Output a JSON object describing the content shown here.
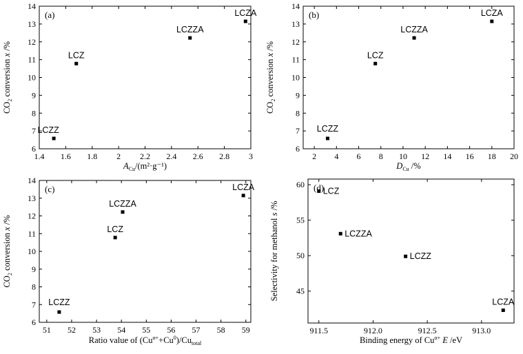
{
  "chart_data": [
    {
      "type": "scatter",
      "panel_label": "(a)",
      "xlabel_parts": [
        "A",
        "Cu",
        "/(m²·g⁻¹)"
      ],
      "ylabel_parts": [
        "CO",
        "2",
        " conversion",
        "x",
        " /%"
      ],
      "xlim": [
        1.4,
        3.0
      ],
      "xticks": [
        1.4,
        1.6,
        1.8,
        2.0,
        2.2,
        2.4,
        2.6,
        2.8,
        3.0
      ],
      "ylim": [
        6,
        14
      ],
      "yticks": [
        6,
        7,
        8,
        9,
        10,
        11,
        12,
        13,
        14
      ],
      "points": [
        {
          "label": "LCZZ",
          "x": 1.51,
          "y": 6.58
        },
        {
          "label": "LCZ",
          "x": 1.68,
          "y": 10.78
        },
        {
          "label": "LCZZA",
          "x": 2.54,
          "y": 12.22
        },
        {
          "label": "LCZA",
          "x": 2.96,
          "y": 13.15
        }
      ]
    },
    {
      "type": "scatter",
      "panel_label": "(b)",
      "xlabel_parts": [
        "D",
        "Cu",
        " /%"
      ],
      "ylabel_parts": [
        "CO",
        "2",
        " conversion",
        "x",
        " /%"
      ],
      "xlim": [
        1,
        20
      ],
      "xticks": [
        2,
        4,
        6,
        8,
        10,
        12,
        14,
        16,
        18,
        20
      ],
      "ylim": [
        6,
        14
      ],
      "yticks": [
        6,
        7,
        8,
        9,
        10,
        11,
        12,
        13,
        14
      ],
      "points": [
        {
          "label": "LCZZ",
          "x": 3.2,
          "y": 6.58
        },
        {
          "label": "LCZ",
          "x": 7.5,
          "y": 10.78
        },
        {
          "label": "LCZZA",
          "x": 11.0,
          "y": 12.22
        },
        {
          "label": "LCZA",
          "x": 18.0,
          "y": 13.15
        }
      ]
    },
    {
      "type": "scatter",
      "panel_label": "(c)",
      "xlabel_parts": [
        "Ratio value of (Cu",
        "α+",
        "+Cu",
        "0",
        ")/Cu",
        "total"
      ],
      "ylabel_parts": [
        "CO",
        "2",
        " conversion",
        "x",
        " /%"
      ],
      "xlim": [
        50.7,
        59.2
      ],
      "xticks": [
        51,
        52,
        53,
        54,
        55,
        56,
        57,
        58,
        59
      ],
      "ylim": [
        6,
        14
      ],
      "yticks": [
        6,
        7,
        8,
        9,
        10,
        11,
        12,
        13,
        14
      ],
      "points": [
        {
          "label": "LCZZ",
          "x": 51.5,
          "y": 6.58
        },
        {
          "label": "LCZ",
          "x": 53.75,
          "y": 10.78
        },
        {
          "label": "LCZZA",
          "x": 54.05,
          "y": 12.22
        },
        {
          "label": "LCZA",
          "x": 58.9,
          "y": 13.15
        }
      ]
    },
    {
      "type": "scatter",
      "panel_label": "(d)",
      "xlabel_parts": [
        "Binding energy of Cu",
        "α+",
        "E",
        " /eV"
      ],
      "ylabel_parts": [
        "Selectivity for methanol",
        "s",
        " /%"
      ],
      "xlim": [
        911.4,
        913.3
      ],
      "xticks": [
        911.5,
        912.0,
        912.5,
        913.0
      ],
      "xtick_labels": [
        "911.5",
        "912.0",
        "912.5",
        "913.0"
      ],
      "ylim": [
        40.5,
        60.8
      ],
      "yticks": [
        45,
        50,
        55,
        60
      ],
      "points": [
        {
          "label": "LCZ",
          "x": 911.5,
          "y": 59.1
        },
        {
          "label": "LCZZA",
          "x": 911.7,
          "y": 53.1
        },
        {
          "label": "LCZZ",
          "x": 912.3,
          "y": 49.9
        },
        {
          "label": "LCZA",
          "x": 913.2,
          "y": 42.3
        }
      ]
    }
  ]
}
